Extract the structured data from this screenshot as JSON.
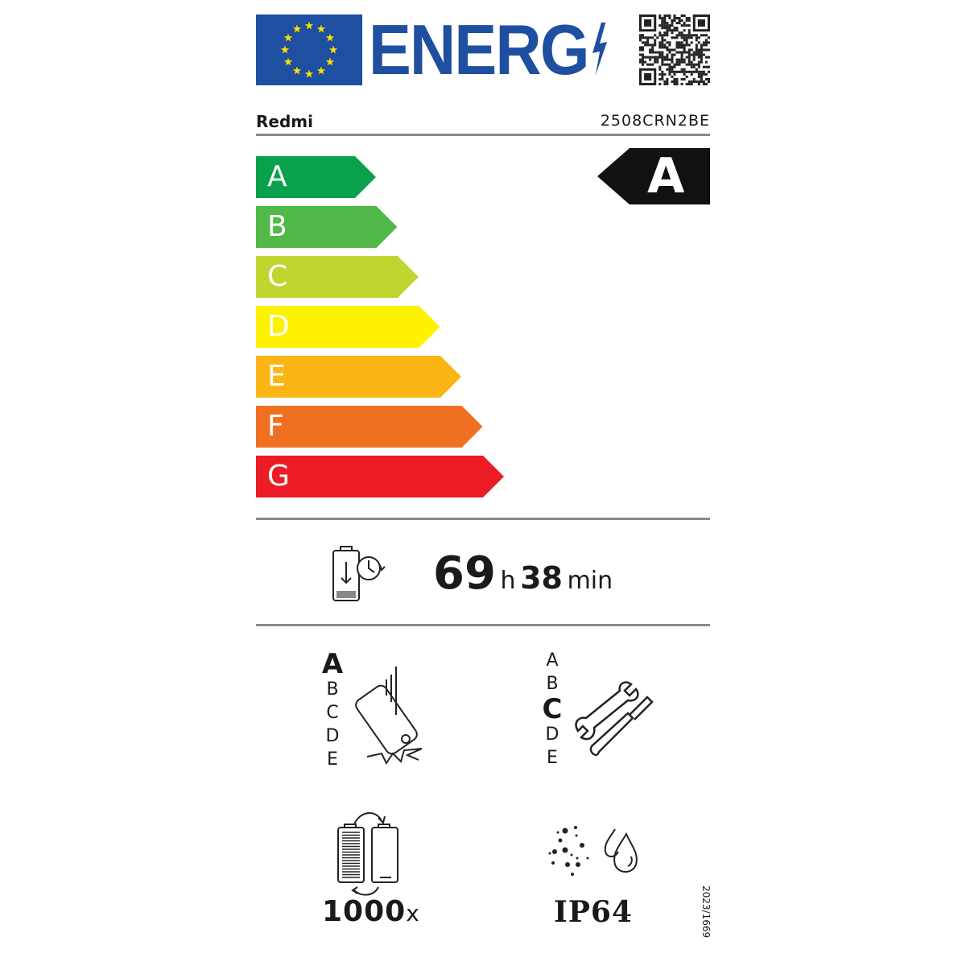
{
  "header": {
    "logo_text": "ENERG",
    "brand": "Redmi",
    "model": "2508CRN2BE"
  },
  "energy_scale": {
    "classes": [
      {
        "label": "A",
        "color": "#0aa14b"
      },
      {
        "label": "B",
        "color": "#52b848"
      },
      {
        "label": "C",
        "color": "#bfd630"
      },
      {
        "label": "D",
        "color": "#fff200"
      },
      {
        "label": "E",
        "color": "#fbb515"
      },
      {
        "label": "F",
        "color": "#f07022"
      },
      {
        "label": "G",
        "color": "#ec1c24"
      }
    ],
    "rating": "A"
  },
  "endurance": {
    "hours": "69",
    "hours_unit": "h",
    "minutes": "38",
    "minutes_unit": "min",
    "icon": "battery-clock-icon"
  },
  "drop_resistance": {
    "scale": [
      "A",
      "B",
      "C",
      "D",
      "E"
    ],
    "selected": "A",
    "icon": "falling-phone-icon"
  },
  "repairability": {
    "scale": [
      "A",
      "B",
      "C",
      "D",
      "E"
    ],
    "selected": "C",
    "icon": "wrench-screwdriver-icon"
  },
  "battery_cycles": {
    "value": "1000",
    "suffix": "x",
    "icon": "battery-cycle-icon"
  },
  "ingress_protection": {
    "value": "IP64",
    "icon": "dust-water-icon"
  },
  "regulation": "2023/1669"
}
